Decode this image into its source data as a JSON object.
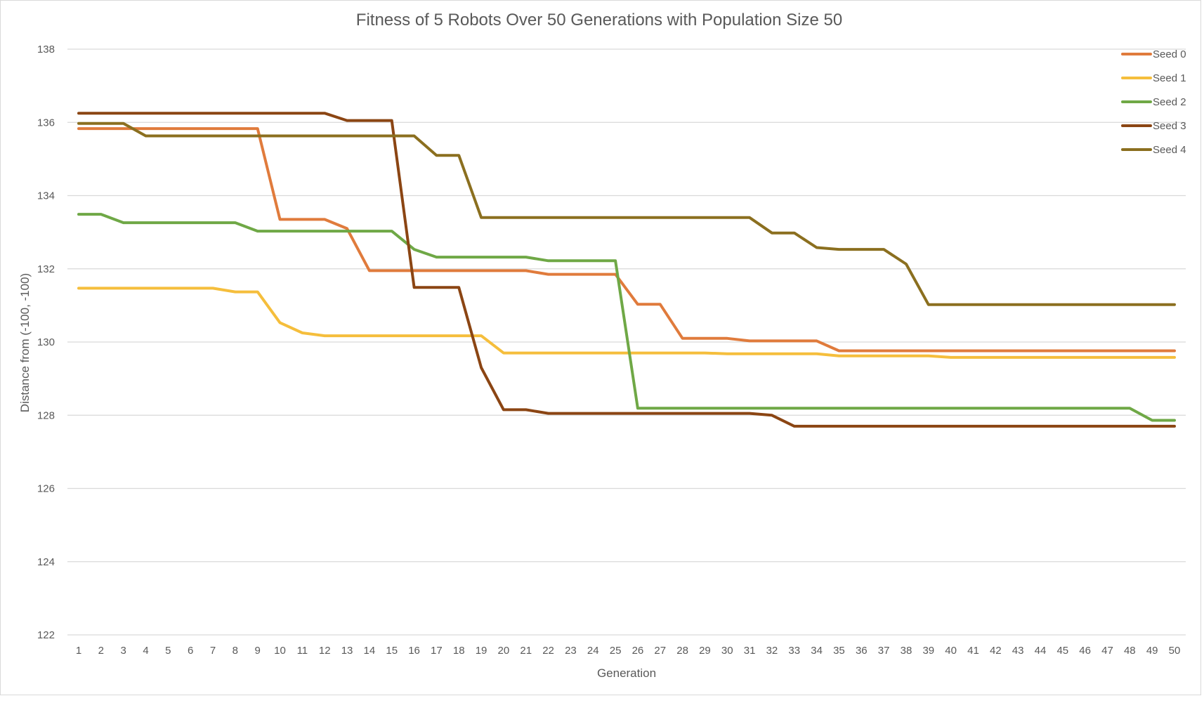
{
  "chart_data": {
    "type": "line",
    "title": "Fitness of 5 Robots Over 50 Generations with Population Size 50",
    "xlabel": "Generation",
    "ylabel": "Distance from (-100, -100)",
    "ylim": [
      122,
      138
    ],
    "yticks": [
      122,
      124,
      126,
      128,
      130,
      132,
      134,
      136,
      138
    ],
    "grid": true,
    "legend_position": "top-right",
    "x": [
      1,
      2,
      3,
      4,
      5,
      6,
      7,
      8,
      9,
      10,
      11,
      12,
      13,
      14,
      15,
      16,
      17,
      18,
      19,
      20,
      21,
      22,
      23,
      24,
      25,
      26,
      27,
      28,
      29,
      30,
      31,
      32,
      33,
      34,
      35,
      36,
      37,
      38,
      39,
      40,
      41,
      42,
      43,
      44,
      45,
      46,
      47,
      48,
      49,
      50
    ],
    "series": [
      {
        "name": "Seed 0",
        "color": "#E07B3C",
        "values": [
          135.83,
          135.83,
          135.83,
          135.83,
          135.83,
          135.83,
          135.83,
          135.83,
          135.83,
          133.35,
          133.35,
          133.35,
          133.1,
          131.95,
          131.95,
          131.95,
          131.95,
          131.95,
          131.95,
          131.95,
          131.95,
          131.85,
          131.85,
          131.85,
          131.85,
          131.03,
          131.03,
          130.1,
          130.1,
          130.1,
          130.03,
          130.03,
          130.03,
          130.03,
          129.76,
          129.76,
          129.76,
          129.76,
          129.76,
          129.76,
          129.76,
          129.76,
          129.76,
          129.76,
          129.76,
          129.76,
          129.76,
          129.76,
          129.76,
          129.76
        ]
      },
      {
        "name": "Seed 1",
        "color": "#F5BE3C",
        "values": [
          131.47,
          131.47,
          131.47,
          131.47,
          131.47,
          131.47,
          131.47,
          131.37,
          131.37,
          130.53,
          130.25,
          130.17,
          130.17,
          130.17,
          130.17,
          130.17,
          130.17,
          130.17,
          130.17,
          129.7,
          129.7,
          129.7,
          129.7,
          129.7,
          129.7,
          129.7,
          129.7,
          129.7,
          129.7,
          129.68,
          129.68,
          129.68,
          129.68,
          129.68,
          129.62,
          129.62,
          129.62,
          129.62,
          129.62,
          129.58,
          129.58,
          129.58,
          129.58,
          129.58,
          129.58,
          129.58,
          129.58,
          129.58,
          129.58,
          129.58
        ]
      },
      {
        "name": "Seed 2",
        "color": "#6FA846",
        "values": [
          133.49,
          133.49,
          133.26,
          133.26,
          133.26,
          133.26,
          133.26,
          133.26,
          133.03,
          133.03,
          133.03,
          133.03,
          133.03,
          133.03,
          133.03,
          132.53,
          132.32,
          132.32,
          132.32,
          132.32,
          132.32,
          132.22,
          132.22,
          132.22,
          132.22,
          128.19,
          128.19,
          128.19,
          128.19,
          128.19,
          128.19,
          128.19,
          128.19,
          128.19,
          128.19,
          128.19,
          128.19,
          128.19,
          128.19,
          128.19,
          128.19,
          128.19,
          128.19,
          128.19,
          128.19,
          128.19,
          128.19,
          128.19,
          127.86,
          127.86
        ]
      },
      {
        "name": "Seed 3",
        "color": "#8B4513",
        "values": [
          136.25,
          136.25,
          136.25,
          136.25,
          136.25,
          136.25,
          136.25,
          136.25,
          136.25,
          136.25,
          136.25,
          136.25,
          136.05,
          136.05,
          136.05,
          131.49,
          131.49,
          131.49,
          129.3,
          128.15,
          128.15,
          128.05,
          128.05,
          128.05,
          128.05,
          128.05,
          128.05,
          128.05,
          128.05,
          128.05,
          128.05,
          128.0,
          127.7,
          127.7,
          127.7,
          127.7,
          127.7,
          127.7,
          127.7,
          127.7,
          127.7,
          127.7,
          127.7,
          127.7,
          127.7,
          127.7,
          127.7,
          127.7,
          127.7,
          127.7
        ]
      },
      {
        "name": "Seed 4",
        "color": "#8B6F1F",
        "values": [
          135.97,
          135.97,
          135.97,
          135.63,
          135.63,
          135.63,
          135.63,
          135.63,
          135.63,
          135.63,
          135.63,
          135.63,
          135.63,
          135.63,
          135.63,
          135.63,
          135.1,
          135.1,
          133.4,
          133.4,
          133.4,
          133.4,
          133.4,
          133.4,
          133.4,
          133.4,
          133.4,
          133.4,
          133.4,
          133.4,
          133.4,
          132.98,
          132.98,
          132.58,
          132.53,
          132.53,
          132.53,
          132.13,
          131.02,
          131.02,
          131.02,
          131.02,
          131.02,
          131.02,
          131.02,
          131.02,
          131.02,
          131.02,
          131.02,
          131.02
        ]
      }
    ]
  }
}
